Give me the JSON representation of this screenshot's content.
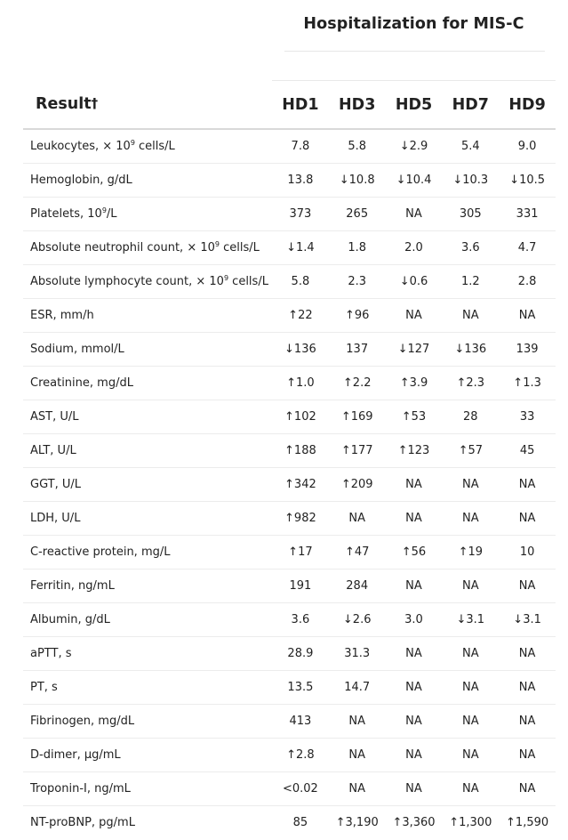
{
  "group_header": "Hospitalization for MIS-C",
  "columns": {
    "result": "Result",
    "result_mark": "†",
    "days": [
      "HD1",
      "HD3",
      "HD5",
      "HD7",
      "HD9"
    ]
  },
  "rows": [
    {
      "label_pre": "Leukocytes, × 10",
      "label_sup": "9",
      "label_post": " cells/L",
      "values": [
        "7.8",
        "5.8",
        "↓2.9",
        "5.4",
        "9.0"
      ]
    },
    {
      "label_pre": "Hemoglobin, g/dL",
      "label_sup": "",
      "label_post": "",
      "values": [
        "13.8",
        "↓10.8",
        "↓10.4",
        "↓10.3",
        "↓10.5"
      ]
    },
    {
      "label_pre": "Platelets, 10",
      "label_sup": "9",
      "label_post": "/L",
      "values": [
        "373",
        "265",
        "NA",
        "305",
        "331"
      ]
    },
    {
      "label_pre": "Absolute neutrophil count, × 10",
      "label_sup": "9",
      "label_post": " cells/L",
      "values": [
        "↓1.4",
        "1.8",
        "2.0",
        "3.6",
        "4.7"
      ]
    },
    {
      "label_pre": "Absolute lymphocyte count, × 10",
      "label_sup": "9",
      "label_post": " cells/L",
      "values": [
        "5.8",
        "2.3",
        "↓0.6",
        "1.2",
        "2.8"
      ]
    },
    {
      "label_pre": "ESR, mm/h",
      "label_sup": "",
      "label_post": "",
      "values": [
        "↑22",
        "↑96",
        "NA",
        "NA",
        "NA"
      ]
    },
    {
      "label_pre": "Sodium, mmol/L",
      "label_sup": "",
      "label_post": "",
      "values": [
        "↓136",
        "137",
        "↓127",
        "↓136",
        "139"
      ]
    },
    {
      "label_pre": "Creatinine, mg/dL",
      "label_sup": "",
      "label_post": "",
      "values": [
        "↑1.0",
        "↑2.2",
        "↑3.9",
        "↑2.3",
        "↑1.3"
      ]
    },
    {
      "label_pre": "AST, U/L",
      "label_sup": "",
      "label_post": "",
      "values": [
        "↑102",
        "↑169",
        "↑53",
        "28",
        "33"
      ]
    },
    {
      "label_pre": "ALT, U/L",
      "label_sup": "",
      "label_post": "",
      "values": [
        "↑188",
        "↑177",
        "↑123",
        "↑57",
        "45"
      ]
    },
    {
      "label_pre": "GGT, U/L",
      "label_sup": "",
      "label_post": "",
      "values": [
        "↑342",
        "↑209",
        "NA",
        "NA",
        "NA"
      ]
    },
    {
      "label_pre": "LDH, U/L",
      "label_sup": "",
      "label_post": "",
      "values": [
        "↑982",
        "NA",
        "NA",
        "NA",
        "NA"
      ]
    },
    {
      "label_pre": "C-reactive protein, mg/L",
      "label_sup": "",
      "label_post": "",
      "values": [
        "↑17",
        "↑47",
        "↑56",
        "↑19",
        "10"
      ]
    },
    {
      "label_pre": "Ferritin, ng/mL",
      "label_sup": "",
      "label_post": "",
      "values": [
        "191",
        "284",
        "NA",
        "NA",
        "NA"
      ]
    },
    {
      "label_pre": "Albumin, g/dL",
      "label_sup": "",
      "label_post": "",
      "values": [
        "3.6",
        "↓2.6",
        "3.0",
        "↓3.1",
        "↓3.1"
      ]
    },
    {
      "label_pre": "aPTT, s",
      "label_sup": "",
      "label_post": "",
      "values": [
        "28.9",
        "31.3",
        "NA",
        "NA",
        "NA"
      ]
    },
    {
      "label_pre": "PT, s",
      "label_sup": "",
      "label_post": "",
      "values": [
        "13.5",
        "14.7",
        "NA",
        "NA",
        "NA"
      ]
    },
    {
      "label_pre": "Fibrinogen, mg/dL",
      "label_sup": "",
      "label_post": "",
      "values": [
        "413",
        "NA",
        "NA",
        "NA",
        "NA"
      ]
    },
    {
      "label_pre": "D-dimer, µg/mL",
      "label_sup": "",
      "label_post": "",
      "values": [
        "↑2.8",
        "NA",
        "NA",
        "NA",
        "NA"
      ]
    },
    {
      "label_pre": "Troponin-I, ng/mL",
      "label_sup": "",
      "label_post": "",
      "values": [
        "<0.02",
        "NA",
        "NA",
        "NA",
        "NA"
      ]
    },
    {
      "label_pre": "NT-proBNP, pg/mL",
      "label_sup": "",
      "label_post": "",
      "values": [
        "85",
        "↑3,190",
        "↑3,360",
        "↑1,300",
        "↑1,590"
      ]
    }
  ]
}
